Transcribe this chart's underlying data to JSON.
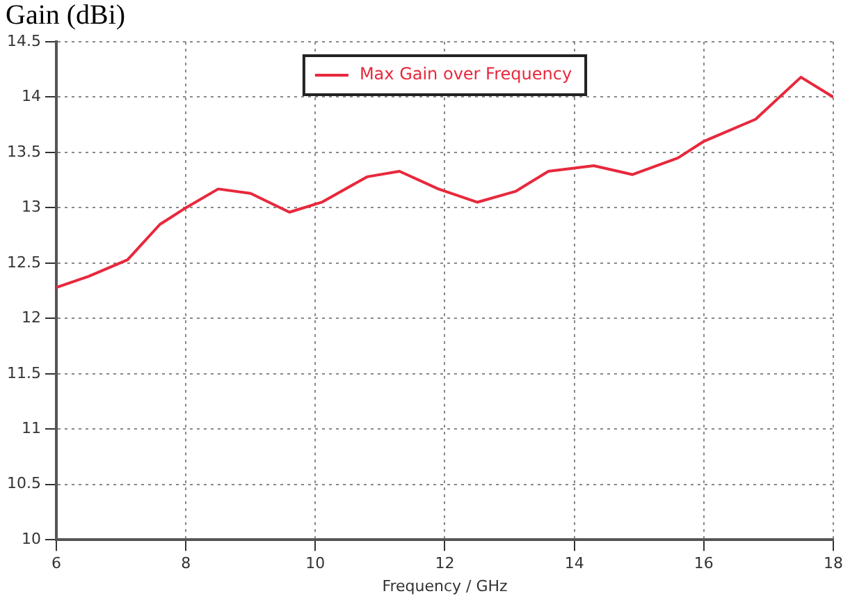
{
  "chart_data": {
    "type": "line",
    "xlabel": "Frequency / GHz",
    "ylabel": "Gain (dBi)",
    "x": [
      6,
      6.5,
      7.1,
      7.6,
      8,
      8.5,
      9,
      9.6,
      10.1,
      10.8,
      11.3,
      11.9,
      12.5,
      13.1,
      13.6,
      14.3,
      14.9,
      15.6,
      16,
      16.8,
      17.5,
      18
    ],
    "series": [
      {
        "name": "Max Gain over Frequency",
        "color": "#e8283c",
        "values": [
          12.28,
          12.38,
          12.53,
          12.85,
          13.0,
          13.17,
          13.13,
          12.96,
          13.05,
          13.28,
          13.33,
          13.17,
          13.05,
          13.15,
          13.33,
          13.38,
          13.3,
          13.45,
          13.6,
          13.8,
          14.18,
          14.0
        ]
      }
    ],
    "xlim": [
      6,
      18
    ],
    "xticks": [
      6,
      8,
      10,
      12,
      14,
      16,
      18
    ],
    "ylim": [
      10,
      14.5
    ],
    "yticks": [
      10,
      10.5,
      11,
      11.5,
      12,
      12.5,
      13,
      13.5,
      14,
      14.5
    ],
    "grid": true,
    "legend": "top",
    "marker": "none",
    "line_style": "solid"
  }
}
